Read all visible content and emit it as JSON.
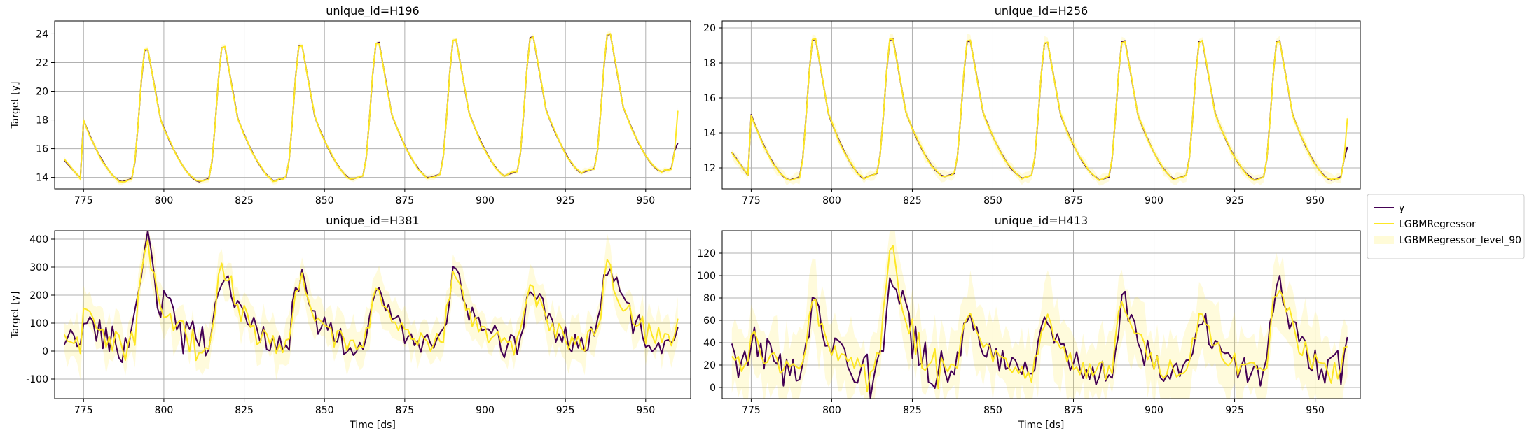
{
  "legend": {
    "placement": "right-center",
    "entries": [
      {
        "label": "y",
        "color": "#440154",
        "kind": "line"
      },
      {
        "label": "LGBMRegressor",
        "color": "#fde725",
        "kind": "line"
      },
      {
        "label": "LGBMRegressor_level_90",
        "color": "#fde725",
        "kind": "band"
      }
    ]
  },
  "chart_data": [
    {
      "type": "line",
      "title": "unique_id=H196",
      "xlabel": "",
      "ylabel": "Target [y]",
      "xlim": [
        766,
        964
      ],
      "ylim": [
        13.2,
        24.9
      ],
      "xticks": [
        775,
        800,
        825,
        850,
        875,
        900,
        925,
        950
      ],
      "yticks": [
        14,
        16,
        18,
        20,
        22,
        24
      ],
      "grid": true,
      "x_start": 769,
      "period": 24,
      "cycle_min": [
        13.7,
        13.7,
        13.7,
        13.8,
        13.9,
        14.0,
        14.2,
        14.4
      ],
      "cycle_peak": [
        23.2,
        23.3,
        23.5,
        23.6,
        23.8,
        24.0,
        24.2,
        24.4
      ],
      "x_end": 960,
      "start_value": 15.2,
      "end_value": 16.4,
      "series": [
        {
          "name": "y",
          "color": "#440154"
        },
        {
          "name": "LGBMRegressor",
          "color": "#fde725"
        },
        {
          "name": "LGBMRegressor_level_90",
          "color": "#fde725",
          "band_halfwidth": 0.15
        }
      ]
    },
    {
      "type": "line",
      "title": "unique_id=H256",
      "xlabel": "",
      "ylabel": "",
      "xlim": [
        766,
        964
      ],
      "ylim": [
        10.8,
        20.4
      ],
      "xticks": [
        775,
        800,
        825,
        850,
        875,
        900,
        925,
        950
      ],
      "yticks": [
        12,
        14,
        16,
        18,
        20
      ],
      "grid": true,
      "x_start": 769,
      "period": 24,
      "cycle_min": [
        11.3,
        11.3,
        11.5,
        11.5,
        11.4,
        11.3,
        11.4,
        11.3
      ],
      "cycle_peak": [
        19.6,
        19.7,
        19.7,
        19.6,
        19.5,
        19.6,
        19.6,
        19.6
      ],
      "x_end": 960,
      "start_value": 12.9,
      "end_value": 13.2,
      "series": [
        {
          "name": "y",
          "color": "#440154"
        },
        {
          "name": "LGBMRegressor",
          "color": "#fde725"
        },
        {
          "name": "LGBMRegressor_level_90",
          "color": "#fde725",
          "band_halfwidth": 0.25
        }
      ]
    },
    {
      "type": "line",
      "title": "unique_id=H381",
      "xlabel": "Time [ds]",
      "ylabel": "Target [y]",
      "xlim": [
        766,
        964
      ],
      "ylim": [
        -170,
        430
      ],
      "xticks": [
        775,
        800,
        825,
        850,
        875,
        900,
        925,
        950
      ],
      "yticks": [
        -100,
        0,
        100,
        200,
        300,
        400
      ],
      "grid": true,
      "x_start": 769,
      "period": 24,
      "cycle_min": [
        25,
        20,
        25,
        20,
        25,
        20,
        15,
        40
      ],
      "cycle_peak": [
        260,
        370,
        310,
        260,
        220,
        260,
        230,
        300
      ],
      "x_end": 960,
      "start_value": 40,
      "end_value": 85,
      "series": [
        {
          "name": "y",
          "color": "#440154"
        },
        {
          "name": "LGBMRegressor",
          "color": "#fde725"
        },
        {
          "name": "LGBMRegressor_level_90",
          "color": "#fde725",
          "band_halfwidth": 60
        }
      ]
    },
    {
      "type": "line",
      "title": "unique_id=H413",
      "xlabel": "Time [ds]",
      "ylabel": "",
      "xlim": [
        766,
        964
      ],
      "ylim": [
        -10,
        140
      ],
      "xticks": [
        775,
        800,
        825,
        850,
        875,
        900,
        925,
        950
      ],
      "yticks": [
        0,
        20,
        40,
        60,
        80,
        100,
        120
      ],
      "grid": true,
      "x_start": 769,
      "period": 24,
      "cycle_min": [
        14,
        12,
        12,
        15,
        12,
        12,
        14,
        16
      ],
      "cycle_peak": [
        85,
        75,
        113,
        63,
        60,
        75,
        65,
        90
      ],
      "x_end": 960,
      "start_value": 27,
      "end_value": 45,
      "series": [
        {
          "name": "y",
          "color": "#440154"
        },
        {
          "name": "LGBMRegressor",
          "color": "#fde725"
        },
        {
          "name": "LGBMRegressor_level_90",
          "color": "#fde725",
          "band_halfwidth": 25
        }
      ]
    }
  ]
}
